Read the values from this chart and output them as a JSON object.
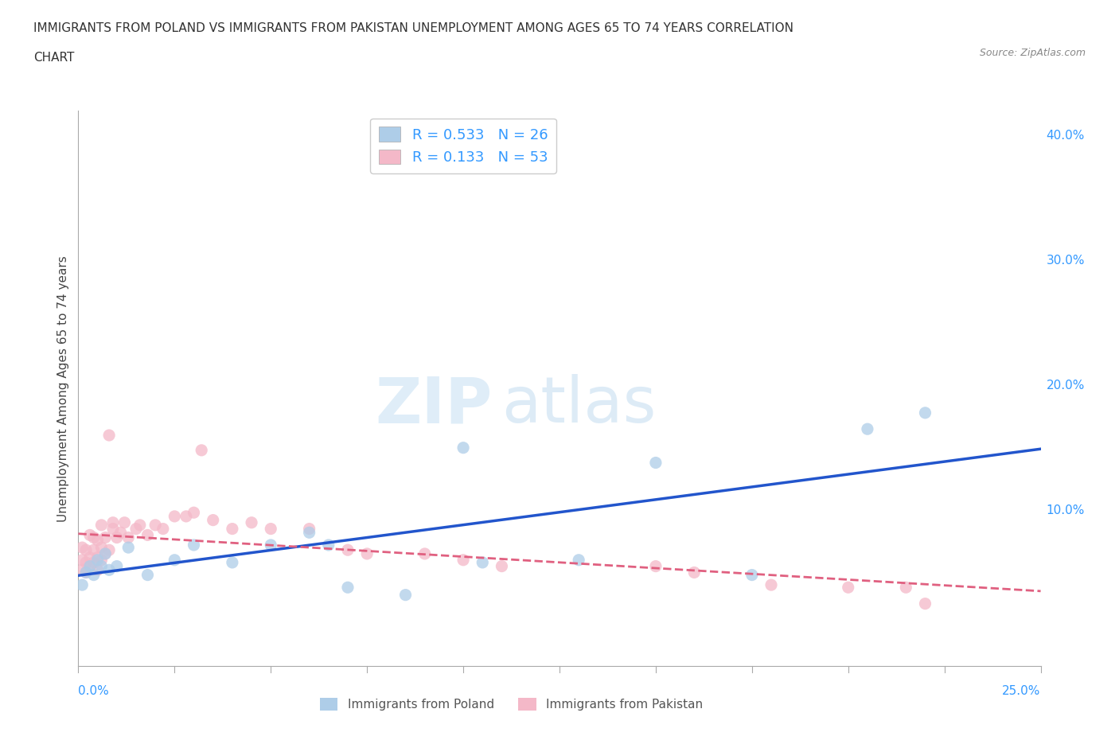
{
  "title_line1": "IMMIGRANTS FROM POLAND VS IMMIGRANTS FROM PAKISTAN UNEMPLOYMENT AMONG AGES 65 TO 74 YEARS CORRELATION",
  "title_line2": "CHART",
  "source": "Source: ZipAtlas.com",
  "ylabel": "Unemployment Among Ages 65 to 74 years",
  "xlim": [
    0.0,
    0.25
  ],
  "ylim": [
    -0.025,
    0.42
  ],
  "poland_color": "#aecde8",
  "pakistan_color": "#f4b8c8",
  "poland_line_color": "#2255cc",
  "pakistan_line_color": "#e06080",
  "poland_R": 0.533,
  "poland_N": 26,
  "pakistan_R": 0.133,
  "pakistan_N": 53,
  "watermark": "ZIPatlas",
  "background_color": "#ffffff",
  "grid_color": "#cccccc",
  "poland_x": [
    0.001,
    0.002,
    0.003,
    0.004,
    0.005,
    0.006,
    0.007,
    0.008,
    0.01,
    0.013,
    0.018,
    0.025,
    0.03,
    0.04,
    0.05,
    0.06,
    0.065,
    0.07,
    0.085,
    0.1,
    0.105,
    0.13,
    0.15,
    0.175,
    0.205,
    0.22
  ],
  "poland_y": [
    0.04,
    0.05,
    0.055,
    0.048,
    0.06,
    0.055,
    0.065,
    0.052,
    0.055,
    0.07,
    0.048,
    0.06,
    0.072,
    0.058,
    0.072,
    0.082,
    0.072,
    0.038,
    0.032,
    0.15,
    0.058,
    0.06,
    0.138,
    0.048,
    0.165,
    0.178
  ],
  "pakistan_x": [
    0.001,
    0.001,
    0.001,
    0.002,
    0.002,
    0.002,
    0.003,
    0.003,
    0.003,
    0.004,
    0.004,
    0.004,
    0.005,
    0.005,
    0.005,
    0.006,
    0.006,
    0.006,
    0.007,
    0.007,
    0.008,
    0.008,
    0.009,
    0.009,
    0.01,
    0.011,
    0.012,
    0.013,
    0.015,
    0.016,
    0.018,
    0.02,
    0.022,
    0.025,
    0.028,
    0.03,
    0.032,
    0.035,
    0.04,
    0.045,
    0.05,
    0.06,
    0.07,
    0.075,
    0.09,
    0.1,
    0.11,
    0.15,
    0.16,
    0.18,
    0.2,
    0.215,
    0.22
  ],
  "pakistan_y": [
    0.052,
    0.06,
    0.07,
    0.05,
    0.058,
    0.068,
    0.055,
    0.062,
    0.08,
    0.058,
    0.068,
    0.078,
    0.052,
    0.062,
    0.076,
    0.06,
    0.07,
    0.088,
    0.065,
    0.078,
    0.068,
    0.16,
    0.09,
    0.085,
    0.078,
    0.082,
    0.09,
    0.078,
    0.085,
    0.088,
    0.08,
    0.088,
    0.085,
    0.095,
    0.095,
    0.098,
    0.148,
    0.092,
    0.085,
    0.09,
    0.085,
    0.085,
    0.068,
    0.065,
    0.065,
    0.06,
    0.055,
    0.055,
    0.05,
    0.04,
    0.038,
    0.038,
    0.025
  ]
}
